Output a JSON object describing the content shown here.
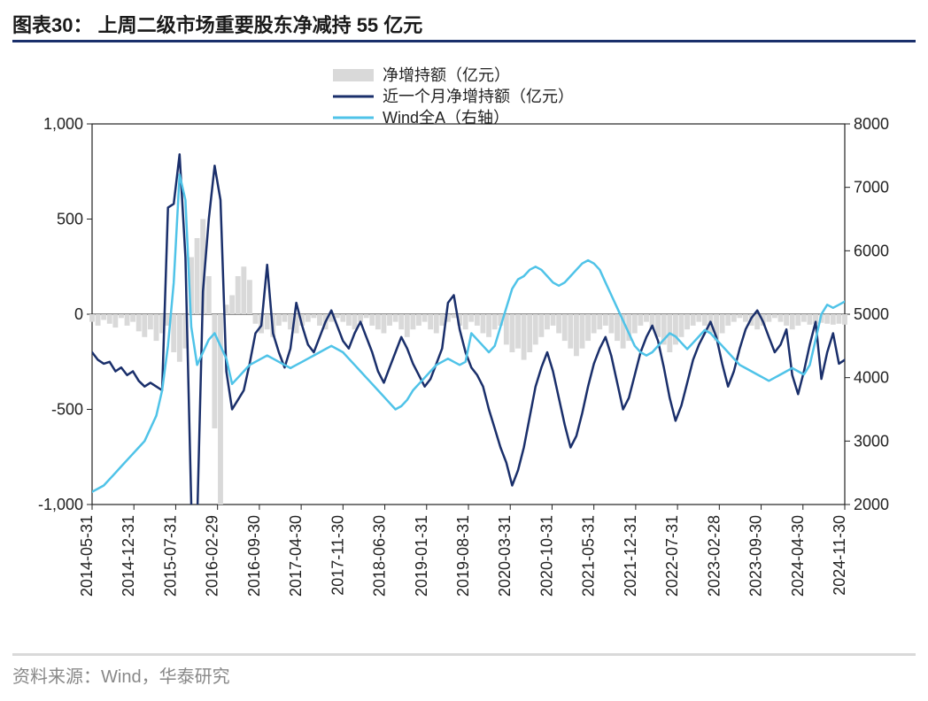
{
  "title": "图表30：  上周二级市场重要股东净减持 55 亿元",
  "source": "资料来源：Wind，华泰研究",
  "chart": {
    "type": "dual-axis-line-bar",
    "background_color": "#ffffff",
    "title_border_color": "#1a2f6b",
    "source_border_color": "#d9d9d9",
    "legend": {
      "position": "top-center",
      "items": [
        {
          "label": "净增持额（亿元）",
          "kind": "bar",
          "color": "#d9d9d9"
        },
        {
          "label": "近一个月净增持额（亿元）",
          "kind": "line",
          "color": "#1a2f6b"
        },
        {
          "label": "Wind全A（右轴）",
          "kind": "line",
          "color": "#4fc3e8"
        }
      ],
      "fontsize": 18
    },
    "y_left": {
      "min": -1000,
      "max": 1000,
      "ticks": [
        -1000,
        -500,
        0,
        500,
        1000
      ],
      "tick_labels": [
        "-1,000",
        "-500",
        "0",
        "500",
        "1,000"
      ],
      "fontsize": 18
    },
    "y_right": {
      "min": 2000,
      "max": 8000,
      "ticks": [
        2000,
        3000,
        4000,
        5000,
        6000,
        7000,
        8000
      ],
      "fontsize": 18
    },
    "x": {
      "labels": [
        "2014-05-31",
        "2014-12-31",
        "2015-07-31",
        "2016-02-29",
        "2016-09-30",
        "2017-04-30",
        "2017-11-30",
        "2018-06-30",
        "2019-01-31",
        "2019-08-31",
        "2020-03-31",
        "2020-10-31",
        "2021-05-31",
        "2021-12-31",
        "2022-07-31",
        "2023-02-28",
        "2023-09-30",
        "2024-04-30",
        "2024-11-30"
      ],
      "rotation": -90,
      "fontsize": 18
    },
    "line_width": 2.5,
    "bar_color": "#d9d9d9",
    "series": {
      "bars": {
        "count": 130,
        "values": [
          -40,
          -60,
          -30,
          -50,
          -70,
          -20,
          -60,
          -40,
          -90,
          -120,
          -80,
          -140,
          -100,
          -60,
          -200,
          -250,
          -180,
          300,
          400,
          500,
          200,
          -600,
          -1000,
          50,
          100,
          200,
          250,
          180,
          -50,
          -100,
          -80,
          -120,
          -60,
          -40,
          -80,
          -100,
          -60,
          -40,
          -20,
          -60,
          -80,
          -40,
          -20,
          -40,
          -60,
          -80,
          -40,
          -20,
          -60,
          -80,
          -100,
          -60,
          -40,
          -80,
          -120,
          -80,
          -60,
          -40,
          -80,
          -100,
          -60,
          -40,
          -20,
          -60,
          -80,
          -40,
          -60,
          -100,
          -120,
          -80,
          -60,
          -160,
          -200,
          -180,
          -240,
          -200,
          -160,
          -120,
          -80,
          -60,
          -100,
          -140,
          -180,
          -220,
          -180,
          -140,
          -100,
          -80,
          -60,
          -100,
          -140,
          -180,
          -140,
          -100,
          -60,
          -40,
          -80,
          -120,
          -160,
          -200,
          -160,
          -120,
          -80,
          -60,
          -40,
          -60,
          -100,
          -140,
          -100,
          -60,
          -40,
          -20,
          -40,
          -60,
          -80,
          -60,
          -40,
          -20,
          -40,
          -60,
          -80,
          -60,
          -40,
          -55,
          -50,
          -45,
          -50,
          -55,
          -50,
          -55
        ]
      },
      "net_month": {
        "color": "#1a2f6b",
        "values": [
          -200,
          -240,
          -260,
          -250,
          -300,
          -280,
          -320,
          -300,
          -350,
          -380,
          -360,
          -380,
          -400,
          560,
          580,
          840,
          300,
          -1000,
          -1100,
          120,
          500,
          780,
          600,
          -300,
          -500,
          -450,
          -400,
          -260,
          -100,
          -60,
          260,
          -100,
          -200,
          -280,
          -180,
          60,
          -60,
          -160,
          -200,
          -120,
          -40,
          20,
          -60,
          -140,
          -180,
          -100,
          -40,
          -120,
          -200,
          -300,
          -360,
          -280,
          -200,
          -120,
          -180,
          -260,
          -320,
          -380,
          -340,
          -260,
          -180,
          60,
          100,
          -80,
          -200,
          -280,
          -320,
          -380,
          -500,
          -600,
          -700,
          -780,
          -900,
          -820,
          -700,
          -540,
          -380,
          -280,
          -200,
          -300,
          -440,
          -580,
          -700,
          -640,
          -520,
          -380,
          -260,
          -180,
          -120,
          -220,
          -360,
          -500,
          -440,
          -320,
          -200,
          -120,
          -60,
          -140,
          -280,
          -440,
          -560,
          -480,
          -360,
          -240,
          -160,
          -100,
          -40,
          -120,
          -260,
          -380,
          -300,
          -180,
          -80,
          -20,
          20,
          -40,
          -120,
          -200,
          -160,
          -80,
          -320,
          -420,
          -300,
          -160,
          -40,
          -340,
          -200,
          -100,
          -260,
          -240
        ]
      },
      "wind_a": {
        "color": "#4fc3e8",
        "values": [
          2200,
          2250,
          2300,
          2400,
          2500,
          2600,
          2700,
          2800,
          2900,
          3000,
          3200,
          3400,
          3800,
          4500,
          5500,
          7200,
          6800,
          4800,
          4200,
          4400,
          4600,
          4700,
          4500,
          4300,
          3900,
          4000,
          4100,
          4200,
          4250,
          4300,
          4350,
          4300,
          4250,
          4200,
          4150,
          4200,
          4250,
          4300,
          4350,
          4400,
          4450,
          4500,
          4450,
          4400,
          4300,
          4200,
          4100,
          4000,
          3900,
          3800,
          3700,
          3600,
          3500,
          3550,
          3650,
          3800,
          3900,
          4000,
          4100,
          4200,
          4250,
          4300,
          4250,
          4200,
          4250,
          4700,
          4600,
          4500,
          4400,
          4500,
          4800,
          5100,
          5400,
          5550,
          5600,
          5700,
          5750,
          5700,
          5600,
          5500,
          5450,
          5500,
          5600,
          5700,
          5800,
          5850,
          5800,
          5700,
          5500,
          5300,
          5100,
          4900,
          4700,
          4500,
          4400,
          4350,
          4400,
          4500,
          4600,
          4700,
          4650,
          4550,
          4450,
          4550,
          4650,
          4750,
          4700,
          4600,
          4500,
          4400,
          4300,
          4200,
          4150,
          4100,
          4050,
          4000,
          3950,
          4000,
          4050,
          4100,
          4150,
          4100,
          4050,
          4200,
          4600,
          5000,
          5150,
          5100,
          5150,
          5200
        ]
      }
    }
  }
}
